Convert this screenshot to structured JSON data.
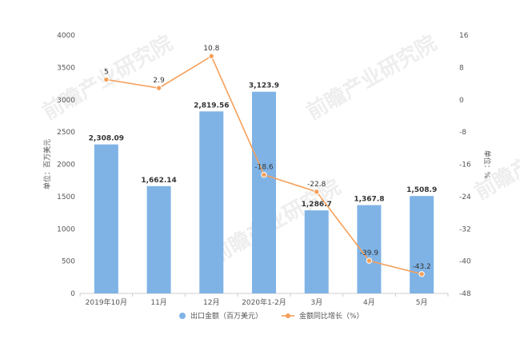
{
  "chart_data": {
    "type": "bar",
    "categories": [
      "2019年10月",
      "11月",
      "12月",
      "2020年1-2月",
      "3月",
      "4月",
      "5月"
    ],
    "series": [
      {
        "name": "出口金额（百万美元）",
        "type": "bar",
        "axis": "left",
        "values": [
          2308.09,
          1662.14,
          2819.56,
          3123.9,
          1286.7,
          1367.8,
          1508.9
        ],
        "labels": [
          "2,308.09",
          "1,662.14",
          "2,819.56",
          "3,123.9",
          "1,286.7",
          "1,367.8",
          "1,508.9"
        ]
      },
      {
        "name": "金额同比增长（%）",
        "type": "line",
        "axis": "right",
        "values": [
          5,
          2.9,
          10.8,
          -18.6,
          -22.8,
          -39.9,
          -43.2
        ],
        "labels": [
          "5",
          "2.9",
          "10.8",
          "-18.6",
          "-22.8",
          "-39.9",
          "-43.2"
        ]
      }
    ],
    "y_left": {
      "label": "单位：百万美元",
      "range": [
        0,
        4000
      ],
      "ticks": [
        0,
        500,
        1000,
        1500,
        2000,
        2500,
        3000,
        3500,
        4000
      ]
    },
    "y_right": {
      "label": "单位：%",
      "range": [
        -48,
        16
      ],
      "ticks": [
        -48,
        -40,
        -32,
        -24,
        -16,
        -8,
        0,
        8,
        16
      ]
    },
    "grid": false,
    "legend_position": "bottom-center",
    "colors": {
      "bar": "#7fb3e6",
      "line": "#f5a05a",
      "axis": "#cccccc",
      "text": "#555555",
      "watermark": "#eeeeee"
    },
    "watermark": "前瞻产业研究院"
  }
}
